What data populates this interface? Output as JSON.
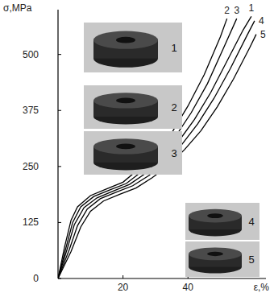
{
  "chart_data": {
    "type": "line",
    "y_label": "σ,MPa",
    "x_label": "ε,%",
    "xlim": [
      0,
      64
    ],
    "ylim": [
      0,
      600
    ],
    "xticks": [
      20,
      40
    ],
    "yticks": [
      0,
      125,
      250,
      375,
      500
    ],
    "grid": false,
    "series": [
      {
        "name": "1",
        "color": "#000000",
        "x": [
          0,
          3,
          5,
          8,
          12,
          17,
          22,
          27,
          32,
          37,
          42,
          47,
          52,
          57,
          59.5
        ],
        "values": [
          0,
          70,
          120,
          158,
          180,
          195,
          210,
          235,
          265,
          305,
          355,
          415,
          485,
          555,
          585
        ]
      },
      {
        "name": "2",
        "color": "#000000",
        "x": [
          0,
          2,
          4,
          6,
          10,
          15,
          20,
          25,
          30,
          35,
          40,
          45,
          50,
          52
        ],
        "values": [
          0,
          70,
          130,
          160,
          185,
          200,
          215,
          245,
          280,
          325,
          385,
          455,
          540,
          580
        ]
      },
      {
        "name": "3",
        "color": "#000000",
        "x": [
          0,
          2.5,
          4.5,
          7,
          11,
          16,
          21,
          26,
          31,
          36,
          41,
          46,
          51,
          55
        ],
        "values": [
          0,
          70,
          125,
          160,
          183,
          198,
          212,
          240,
          272,
          315,
          370,
          435,
          515,
          580
        ]
      },
      {
        "name": "4",
        "color": "#000000",
        "x": [
          0,
          3.5,
          6,
          9,
          13,
          18,
          23,
          28,
          33,
          38,
          43,
          48,
          53,
          58,
          60.5
        ],
        "values": [
          0,
          65,
          118,
          155,
          178,
          193,
          207,
          230,
          260,
          298,
          345,
          402,
          468,
          540,
          575
        ]
      },
      {
        "name": "5",
        "color": "#000000",
        "x": [
          0,
          4,
          7,
          10,
          14,
          19,
          24,
          29,
          34,
          39,
          44,
          49,
          54,
          59,
          61
        ],
        "values": [
          0,
          60,
          115,
          150,
          173,
          188,
          202,
          225,
          252,
          288,
          330,
          383,
          445,
          515,
          545
        ]
      }
    ]
  }
}
